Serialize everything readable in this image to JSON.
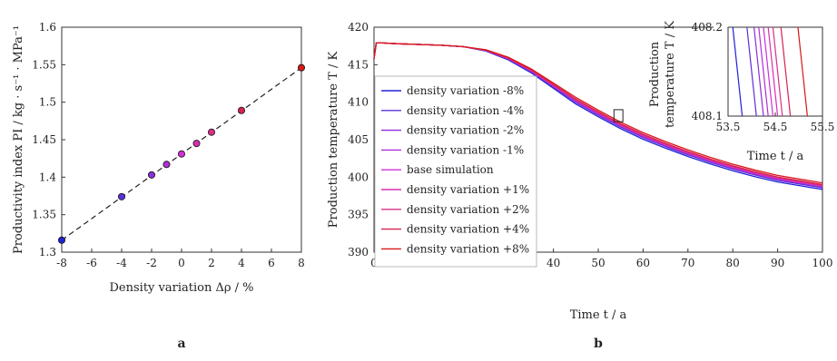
{
  "panels": {
    "a": "a",
    "b": "b"
  },
  "chart_data": [
    {
      "type": "scatter",
      "panel": "a",
      "xlabel": "Density variation Δρ / %",
      "ylabel": "Productivity index PI / kg · s⁻¹ · MPa⁻¹",
      "xlim": [
        -8,
        8
      ],
      "ylim": [
        1.3,
        1.6
      ],
      "xticks": [
        -8,
        -6,
        -4,
        -2,
        0,
        2,
        4,
        6,
        8
      ],
      "xtick_labels": [
        "-8",
        "-6",
        "-4",
        "-2",
        "0",
        "2",
        "4",
        "6",
        "8"
      ],
      "yticks": [
        1.3,
        1.35,
        1.4,
        1.45,
        1.5,
        1.55,
        1.6
      ],
      "ytick_labels": [
        "1.3",
        "1.35",
        "1.4",
        "1.45",
        "1.5",
        "1.55",
        "1.6"
      ],
      "points": [
        {
          "x": -8,
          "y": 1.316,
          "color": "#2222d8"
        },
        {
          "x": -4,
          "y": 1.374,
          "color": "#5c30d8"
        },
        {
          "x": -2,
          "y": 1.403,
          "color": "#8a2fd8"
        },
        {
          "x": -1,
          "y": 1.417,
          "color": "#b02fd8"
        },
        {
          "x": 0,
          "y": 1.431,
          "color": "#d02fd8"
        },
        {
          "x": 1,
          "y": 1.445,
          "color": "#d82fb0"
        },
        {
          "x": 2,
          "y": 1.46,
          "color": "#d82f88"
        },
        {
          "x": 4,
          "y": 1.489,
          "color": "#d82250"
        },
        {
          "x": 8,
          "y": 1.546,
          "color": "#d81818"
        }
      ],
      "fit_line": {
        "x": [
          -8,
          8
        ],
        "y": [
          1.316,
          1.546
        ],
        "style": "dashed",
        "color": "#222222"
      },
      "grid": false
    },
    {
      "type": "line",
      "panel": "b",
      "xlabel": "Time t / a",
      "ylabel": "Production temperature T / K",
      "xlim": [
        0,
        100
      ],
      "ylim": [
        390,
        420
      ],
      "xticks": [
        0,
        10,
        20,
        30,
        40,
        50,
        60,
        70,
        80,
        90,
        100
      ],
      "xtick_labels": [
        "0",
        "10",
        "20",
        "30",
        "40",
        "50",
        "60",
        "70",
        "80",
        "90",
        "100"
      ],
      "yticks": [
        390,
        395,
        400,
        405,
        410,
        415,
        420
      ],
      "ytick_labels": [
        "390",
        "395",
        "400",
        "405",
        "410",
        "415",
        "420"
      ],
      "legend_position": "left-middle",
      "x": [
        0,
        0.5,
        2,
        5,
        10,
        15,
        20,
        25,
        30,
        35,
        40,
        45,
        50,
        55,
        60,
        65,
        70,
        75,
        80,
        85,
        90,
        95,
        100
      ],
      "base_curve": [
        415.8,
        417.9,
        417.9,
        417.8,
        417.7,
        417.6,
        417.4,
        416.9,
        415.8,
        414.2,
        412.2,
        410.2,
        408.5,
        406.9,
        405.5,
        404.3,
        403.2,
        402.2,
        401.3,
        400.5,
        399.8,
        399.3,
        398.8
      ],
      "series": [
        {
          "name": "density variation -8%",
          "color": "#2222d8",
          "offset": -0.2
        },
        {
          "name": "density variation -4%",
          "color": "#5c30d8",
          "offset": -0.1
        },
        {
          "name": "density variation -2%",
          "color": "#8a2fd8",
          "offset": -0.05
        },
        {
          "name": "density variation -1%",
          "color": "#b02fd8",
          "offset": -0.025
        },
        {
          "name": "base simulation",
          "color": "#d02fd8",
          "offset": 0
        },
        {
          "name": "density variation +1%",
          "color": "#d82fb0",
          "offset": 0.025
        },
        {
          "name": "density variation +2%",
          "color": "#d82f88",
          "offset": 0.05
        },
        {
          "name": "density variation +4%",
          "color": "#d82250",
          "offset": 0.1
        },
        {
          "name": "density variation +8%",
          "color": "#d81818",
          "offset": 0.2
        }
      ],
      "zoom_box": {
        "x": [
          53.5,
          55.5
        ],
        "y": [
          407.4,
          409.0
        ]
      },
      "inset": {
        "xlabel": "Time t / a",
        "ylabel_line1": "Production",
        "ylabel_line2": "temperature T / K",
        "xlim": [
          53.5,
          55.5
        ],
        "ylim": [
          408.1,
          408.2
        ],
        "xticks": [
          53.5,
          54.5,
          55.5
        ],
        "xtick_labels": [
          "53.5",
          "54.5",
          "55.5"
        ],
        "yticks": [
          408.1,
          408.2
        ],
        "ytick_labels": [
          "408.1",
          "408.2"
        ],
        "crossings": [
          {
            "x_top": 53.6,
            "x_bottom": 53.8
          },
          {
            "x_top": 53.9,
            "x_bottom": 54.1
          },
          {
            "x_top": 54.05,
            "x_bottom": 54.25
          },
          {
            "x_top": 54.15,
            "x_bottom": 54.35
          },
          {
            "x_top": 54.25,
            "x_bottom": 54.45
          },
          {
            "x_top": 54.35,
            "x_bottom": 54.55
          },
          {
            "x_top": 54.45,
            "x_bottom": 54.65
          },
          {
            "x_top": 54.62,
            "x_bottom": 54.82
          },
          {
            "x_top": 54.98,
            "x_bottom": 55.18
          }
        ]
      },
      "grid": false
    }
  ]
}
